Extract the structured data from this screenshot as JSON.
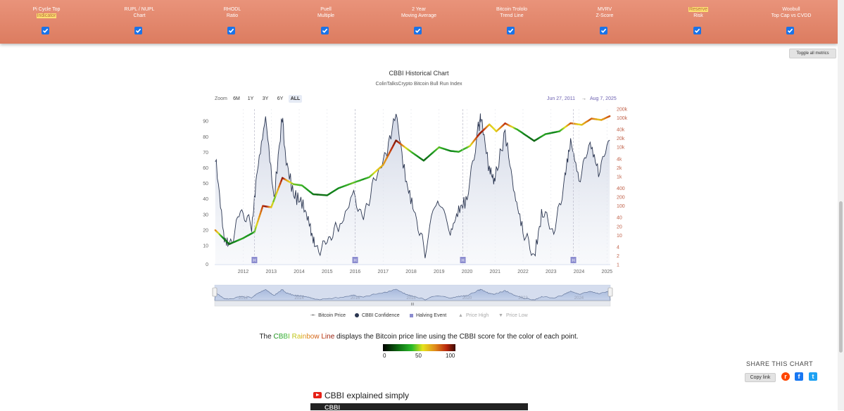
{
  "metrics": [
    {
      "l1": "Pi Cycle Top",
      "l2": "Indicator",
      "hl": "l2"
    },
    {
      "l1": "RUPL / NUPL",
      "l2": "Chart",
      "hl": ""
    },
    {
      "l1": "RHODL",
      "l2": "Ratio",
      "hl": ""
    },
    {
      "l1": "Puell",
      "l2": "Multiple",
      "hl": ""
    },
    {
      "l1": "2 Year",
      "l2": "Moving Average",
      "hl": ""
    },
    {
      "l1": "Bitcoin Trololo",
      "l2": "Trend Line",
      "hl": ""
    },
    {
      "l1": "MVRV",
      "l2": "Z-Score",
      "hl": ""
    },
    {
      "l1": "Reserve",
      "l2": "Risk",
      "hl": "l1"
    },
    {
      "l1": "Woobull",
      "l2": "Top Cap vs CVDD",
      "hl": ""
    }
  ],
  "toggle_all_label": "Toggle all metrics",
  "chart": {
    "title": "CBBI Historical Chart",
    "subtitle": "ColinTalksCrypto Bitcoin Bull Run Index",
    "zoom_label": "Zoom",
    "zoom_buttons": [
      "6M",
      "1Y",
      "3Y",
      "6Y",
      "ALL"
    ],
    "active_zoom": "ALL",
    "range_from": "Jun 27, 2011",
    "range_arrow": "→",
    "range_to": "Aug 7, 2025"
  },
  "chart_data": {
    "type": "line",
    "title": "CBBI Historical Chart",
    "subtitle": "ColinTalksCrypto Bitcoin Bull Run Index",
    "x_ticks": [
      "2012",
      "2013",
      "2014",
      "2015",
      "2016",
      "2017",
      "2018",
      "2019",
      "2020",
      "2021",
      "2022",
      "2023",
      "2024",
      "2025"
    ],
    "y_left_ticks": [
      "0",
      "10",
      "20",
      "30",
      "40",
      "50",
      "60",
      "70",
      "80",
      "90"
    ],
    "y_right_ticks": [
      "1",
      "2",
      "4",
      "10",
      "20",
      "40",
      "100",
      "200",
      "400",
      "1k",
      "2k",
      "4k",
      "10k",
      "20k",
      "40k",
      "100k",
      "200k"
    ],
    "ylim_left": [
      0,
      100
    ],
    "ylim_right_log": [
      1,
      200000
    ],
    "halving_label": "H",
    "halving_events": [
      2012.9,
      2016.5,
      2020.35,
      2024.3
    ],
    "series": [
      {
        "name": "Bitcoin Price",
        "type": "rainbow-line",
        "x": [
          2011.5,
          2012.0,
          2012.5,
          2012.9,
          2013.2,
          2013.5,
          2013.9,
          2014.3,
          2014.6,
          2015.0,
          2015.5,
          2015.9,
          2016.5,
          2017.0,
          2017.5,
          2017.96,
          2018.5,
          2018.95,
          2019.5,
          2019.9,
          2020.2,
          2020.6,
          2020.95,
          2021.3,
          2021.55,
          2021.86,
          2022.3,
          2022.9,
          2023.3,
          2023.8,
          2024.2,
          2024.6,
          2024.95,
          2025.3,
          2025.6
        ],
        "y": [
          15,
          5,
          8,
          13,
          100,
          90,
          900,
          550,
          500,
          250,
          230,
          400,
          650,
          950,
          2500,
          17000,
          7000,
          3500,
          10000,
          7500,
          7000,
          11000,
          29000,
          60000,
          35000,
          65000,
          40000,
          16500,
          28000,
          35000,
          66000,
          58000,
          95000,
          85000,
          115000
        ]
      },
      {
        "name": "CBBI Confidence",
        "type": "area",
        "x": [
          2011.5,
          2011.8,
          2012.0,
          2012.4,
          2012.8,
          2013.0,
          2013.3,
          2013.6,
          2013.9,
          2014.0,
          2014.3,
          2014.6,
          2014.9,
          2015.1,
          2015.5,
          2015.9,
          2016.4,
          2016.8,
          2017.2,
          2017.6,
          2017.96,
          2018.3,
          2018.6,
          2019.0,
          2019.45,
          2019.9,
          2020.2,
          2020.5,
          2020.9,
          2021.0,
          2021.3,
          2021.5,
          2021.86,
          2022.2,
          2022.5,
          2022.9,
          2023.2,
          2023.6,
          2024.0,
          2024.2,
          2024.5,
          2024.9,
          2025.2,
          2025.6
        ],
        "y": [
          70,
          20,
          10,
          35,
          25,
          60,
          95,
          42,
          96,
          70,
          45,
          40,
          25,
          8,
          15,
          25,
          45,
          30,
          55,
          70,
          98,
          55,
          35,
          8,
          45,
          20,
          35,
          42,
          88,
          95,
          60,
          55,
          85,
          45,
          22,
          5,
          35,
          20,
          55,
          80,
          55,
          78,
          60,
          80
        ]
      },
      {
        "name": "Halving Event",
        "type": "marker"
      },
      {
        "name": "Price High",
        "type": "marker",
        "hidden": true
      },
      {
        "name": "Price Low",
        "type": "marker",
        "hidden": true
      }
    ],
    "navigator_ticks": [
      "2012",
      "2014",
      "2016",
      "2018",
      "2020",
      "2022",
      "2024"
    ],
    "navigator_handle": "III",
    "legend_position": "bottom"
  },
  "legend": [
    {
      "label": "Bitcoin Price",
      "hidden": false
    },
    {
      "label": "CBBI Confidence",
      "hidden": false
    },
    {
      "label": "Halving Event",
      "hidden": false
    },
    {
      "label": "Price High",
      "hidden": true
    },
    {
      "label": "Price Low",
      "hidden": true
    }
  ],
  "rainbow": {
    "pre": "The ",
    "word1": "CBBI Rainbow Line",
    "post": " displays the Bitcoin price line using the CBBI score for the color of each point.",
    "tick_low": "0",
    "tick_mid": "50",
    "tick_high": "100"
  },
  "share": {
    "title": "SHARE THIS CHART",
    "copy_label": "Copy link",
    "reddit": "r",
    "facebook": "f",
    "twitter": "t"
  },
  "video": {
    "title": "CBBI explained simply",
    "thumb_text": "CBBI"
  },
  "colors": {
    "bar": "#dc7c60",
    "checkbox": "#1a73e8",
    "confidence_line": "#2a3550",
    "halving": "#8b8ccf",
    "right_axis": "#c0624a"
  }
}
